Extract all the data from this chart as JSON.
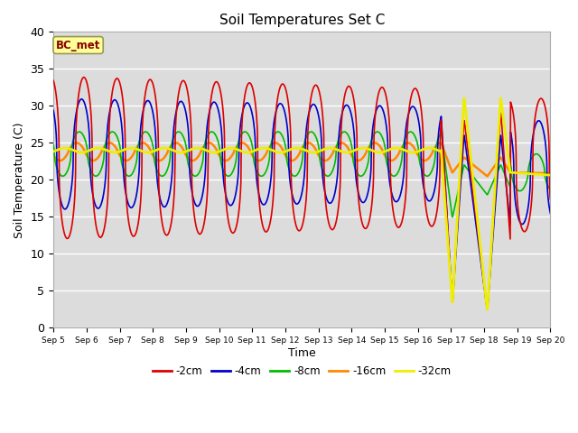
{
  "title": "Soil Temperatures Set C",
  "xlabel": "Time",
  "ylabel": "Soil Temperature (C)",
  "annotation": "BC_met",
  "ylim": [
    0,
    40
  ],
  "yticks": [
    0,
    5,
    10,
    15,
    20,
    25,
    30,
    35,
    40
  ],
  "xtick_labels": [
    "Sep 5",
    "Sep 6",
    "Sep 7",
    "Sep 8",
    "Sep 9",
    "Sep 10",
    "Sep 11",
    "Sep 12",
    "Sep 13",
    "Sep 14",
    "Sep 15",
    "Sep 16",
    "Sep 17",
    "Sep 18",
    "Sep 19",
    "Sep 20"
  ],
  "series_colors": {
    "-2cm": "#dd0000",
    "-4cm": "#0000cc",
    "-8cm": "#00bb00",
    "-16cm": "#ff8800",
    "-32cm": "#eeee00"
  },
  "series_lw": {
    "-2cm": 1.2,
    "-4cm": 1.2,
    "-8cm": 1.2,
    "-16cm": 1.8,
    "-32cm": 2.0
  },
  "background_color": "#e8e8e8",
  "plot_bg": "#dcdcdc",
  "legend_labels": [
    "-2cm",
    "-4cm",
    "-8cm",
    "-16cm",
    "-32cm"
  ],
  "legend_colors": [
    "#dd0000",
    "#0000cc",
    "#00bb00",
    "#ff8800",
    "#eeee00"
  ]
}
